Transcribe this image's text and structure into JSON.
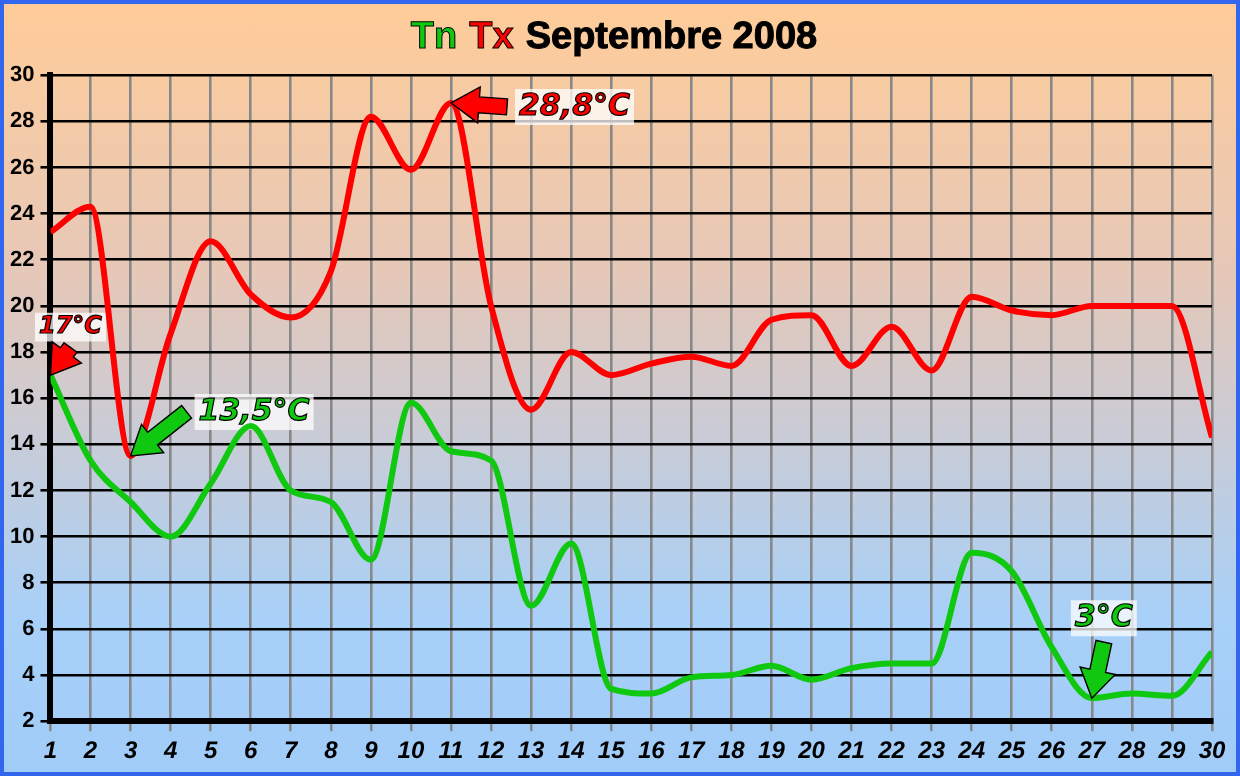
{
  "chart_data": {
    "type": "line",
    "title": "Septembre 2008",
    "legend": "top",
    "marker": "none",
    "line_style": "solid",
    "grid": true,
    "x": [
      1,
      2,
      3,
      4,
      5,
      6,
      7,
      8,
      9,
      10,
      11,
      12,
      13,
      14,
      15,
      16,
      17,
      18,
      19,
      20,
      21,
      22,
      23,
      24,
      25,
      26,
      27,
      28,
      29,
      30
    ],
    "xlim": [
      1,
      30
    ],
    "xticks": [
      1,
      2,
      3,
      4,
      5,
      6,
      7,
      8,
      9,
      10,
      11,
      12,
      13,
      14,
      15,
      16,
      17,
      18,
      19,
      20,
      21,
      22,
      23,
      24,
      25,
      26,
      27,
      28,
      29,
      30
    ],
    "ylim": [
      2,
      30
    ],
    "yticks": [
      2,
      4,
      6,
      8,
      10,
      12,
      14,
      16,
      18,
      20,
      22,
      24,
      26,
      28,
      30
    ],
    "series": [
      {
        "name": "Tn",
        "color": "#11c811",
        "values": [
          17,
          13.3,
          11.5,
          10,
          12.3,
          14.8,
          12,
          11.5,
          9,
          15.8,
          13.7,
          13.3,
          7,
          9.7,
          3.4,
          3.2,
          3.9,
          4,
          4.4,
          3.8,
          4.3,
          4.5,
          4.5,
          9.3,
          8.5,
          5.2,
          3,
          3.2,
          3.1,
          5
        ]
      },
      {
        "name": "Tx",
        "color": "#ff0000",
        "values": [
          23.2,
          24.3,
          13.5,
          18.8,
          22.8,
          20.5,
          19.5,
          21.5,
          28.2,
          25.9,
          28.8,
          20,
          15.5,
          18,
          17,
          17.5,
          17.8,
          17.4,
          19.4,
          19.6,
          17.4,
          19.1,
          17.2,
          20.4,
          19.8,
          19.6,
          20,
          20,
          20,
          14.3
        ]
      }
    ],
    "annotations": [
      {
        "text": "28,8°C",
        "x": 11,
        "y": 28.8
      },
      {
        "text": "13,5°C",
        "x": 3,
        "y": 13.5
      },
      {
        "text": "17°C",
        "x": 1,
        "y": 17
      },
      {
        "text": "3°C",
        "x": 27,
        "y": 3
      }
    ]
  }
}
